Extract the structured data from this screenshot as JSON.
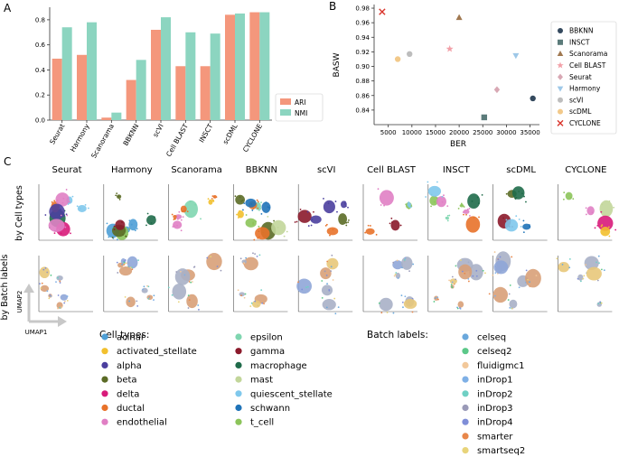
{
  "panel_labels": {
    "a": "A",
    "b": "B",
    "c": "C"
  },
  "chart_data": [
    {
      "type": "bar",
      "categories": [
        "Seurat",
        "Harmony",
        "Scanorama",
        "BBKNN",
        "scVI",
        "Cell BLAST",
        "INSCT",
        "scDML",
        "CYCLONE"
      ],
      "series": [
        {
          "name": "ARI",
          "color": "#f4977c",
          "values": [
            0.49,
            0.52,
            0.02,
            0.32,
            0.72,
            0.43,
            0.43,
            0.84,
            0.86
          ]
        },
        {
          "name": "NMI",
          "color": "#8cd5c0",
          "values": [
            0.74,
            0.78,
            0.06,
            0.48,
            0.82,
            0.7,
            0.69,
            0.85,
            0.86
          ]
        }
      ],
      "ylim": [
        0,
        0.9
      ],
      "yticks": [
        "0.0",
        "0.2",
        "0.4",
        "0.6",
        "0.8"
      ],
      "legend": "bottom-right"
    },
    {
      "type": "scatter",
      "xlabel": "BER",
      "ylabel": "BASW",
      "xlim": [
        2000,
        37000
      ],
      "ylim": [
        0.82,
        0.985
      ],
      "xticks": [
        "5000",
        "10000",
        "15000",
        "20000",
        "25000",
        "30000",
        "35000"
      ],
      "yticks": [
        "0.84",
        "0.86",
        "0.88",
        "0.90",
        "0.92",
        "0.94",
        "0.96",
        "0.98"
      ],
      "points": [
        {
          "name": "BBKNN",
          "x": 35600,
          "y": 0.856,
          "marker": "circle",
          "color": "#34495e"
        },
        {
          "name": "INSCT",
          "x": 25300,
          "y": 0.83,
          "marker": "square",
          "color": "#5b7b7a"
        },
        {
          "name": "Scanorama",
          "x": 20000,
          "y": 0.967,
          "marker": "triangle-up",
          "color": "#a07850"
        },
        {
          "name": "Cell BLAST",
          "x": 18000,
          "y": 0.924,
          "marker": "star",
          "color": "#f2a0a8"
        },
        {
          "name": "Seurat",
          "x": 28000,
          "y": 0.868,
          "marker": "diamond",
          "color": "#d8a8b4"
        },
        {
          "name": "Harmony",
          "x": 32000,
          "y": 0.915,
          "marker": "triangle-down",
          "color": "#9ec8e8"
        },
        {
          "name": "scVI",
          "x": 9500,
          "y": 0.917,
          "marker": "circle",
          "color": "#bdbdbd"
        },
        {
          "name": "scDML",
          "x": 7000,
          "y": 0.91,
          "marker": "circle",
          "color": "#f2c98a"
        },
        {
          "name": "CYCLONE",
          "x": 3700,
          "y": 0.975,
          "marker": "x",
          "color": "#d9342b"
        }
      ],
      "legend": "right"
    }
  ],
  "umap": {
    "methods": [
      "Seurat",
      "Harmony",
      "Scanorama",
      "BBKNN",
      "scVI",
      "Cell BLAST",
      "INSCT",
      "scDML",
      "CYCLONE"
    ],
    "row_labels": [
      "by Cell types",
      "by Batch labels"
    ],
    "axis_x": "UMAP1",
    "axis_y": "UMAP2"
  },
  "legends": {
    "cell_types_title": "Cell types:",
    "cell_types": [
      {
        "label": "acinar",
        "color": "#4e9fd6"
      },
      {
        "label": "activated_stellate",
        "color": "#f2c02e"
      },
      {
        "label": "alpha",
        "color": "#4b3f9e"
      },
      {
        "label": "beta",
        "color": "#5b6b26"
      },
      {
        "label": "delta",
        "color": "#d81b7a"
      },
      {
        "label": "ductal",
        "color": "#e8722a"
      },
      {
        "label": "endothelial",
        "color": "#e07fc4"
      },
      {
        "label": "epsilon",
        "color": "#7fd6b0"
      },
      {
        "label": "gamma",
        "color": "#8b1a2b"
      },
      {
        "label": "macrophage",
        "color": "#1f6b4a"
      },
      {
        "label": "mast",
        "color": "#c2d69a"
      },
      {
        "label": "quiescent_stellate",
        "color": "#7fc8ec"
      },
      {
        "label": "schwann",
        "color": "#1f73b8"
      },
      {
        "label": "t_cell",
        "color": "#8cc45a"
      }
    ],
    "batch_title": "Batch labels:",
    "batch": [
      {
        "label": "celseq",
        "color": "#6aa8dc"
      },
      {
        "label": "celseq2",
        "color": "#5cc889"
      },
      {
        "label": "fluidigmc1",
        "color": "#f2c89a"
      },
      {
        "label": "inDrop1",
        "color": "#7fb0e6"
      },
      {
        "label": "inDrop2",
        "color": "#6fd0c4"
      },
      {
        "label": "inDrop3",
        "color": "#9a9ab8"
      },
      {
        "label": "inDrop4",
        "color": "#7f8ed8"
      },
      {
        "label": "smarter",
        "color": "#e8874a"
      },
      {
        "label": "smartseq2",
        "color": "#e8d47a"
      }
    ]
  }
}
